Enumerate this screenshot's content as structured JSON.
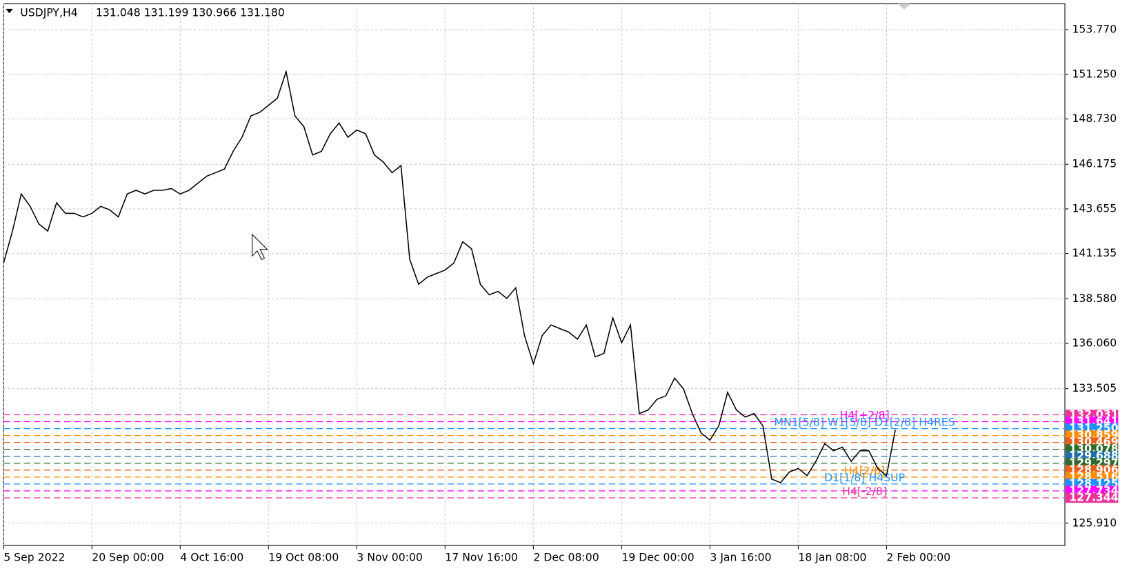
{
  "chart_data": {
    "type": "line",
    "title": "USDJPY,H4",
    "subtitle": "131.048 131.199 130.966 131.180",
    "color": "#000000",
    "values": [
      140.6,
      142.4,
      144.5,
      143.8,
      142.8,
      142.4,
      144.0,
      143.4,
      143.4,
      143.2,
      143.4,
      143.8,
      143.6,
      143.2,
      144.5,
      144.7,
      144.5,
      144.7,
      144.7,
      144.8,
      144.5,
      144.7,
      145.1,
      145.5,
      145.7,
      145.9,
      146.9,
      147.7,
      148.9,
      149.1,
      149.5,
      149.9,
      151.4,
      148.9,
      148.3,
      146.7,
      146.9,
      147.9,
      148.5,
      147.7,
      148.1,
      147.9,
      146.7,
      146.3,
      145.7,
      146.1,
      140.8,
      139.4,
      139.8,
      140.0,
      140.2,
      140.6,
      141.8,
      141.4,
      139.4,
      138.8,
      139.0,
      138.6,
      139.2,
      136.5,
      134.9,
      136.5,
      137.1,
      136.9,
      136.7,
      136.3,
      137.1,
      135.3,
      135.5,
      137.5,
      136.1,
      137.1,
      132.1,
      132.3,
      132.9,
      133.1,
      134.1,
      133.5,
      132.1,
      131.0,
      130.6,
      131.4,
      133.3,
      132.3,
      131.9,
      132.1,
      131.4,
      128.4,
      128.2,
      128.8,
      129.0,
      128.6,
      129.4,
      130.4,
      130.0,
      130.2,
      129.4,
      130.0,
      130.0,
      129.0,
      128.6,
      131.18
    ],
    "xlim": [
      0,
      120.2
    ],
    "xticks": [
      {
        "value": 0,
        "label": "5 Sep 2022"
      },
      {
        "value": 10,
        "label": "20 Sep 00:00"
      },
      {
        "value": 20,
        "label": "4 Oct 16:00"
      },
      {
        "value": 30,
        "label": "19 Oct 08:00"
      },
      {
        "value": 40,
        "label": "3 Nov 00:00"
      },
      {
        "value": 50,
        "label": "17 Nov 16:00"
      },
      {
        "value": 60,
        "label": "2 Dec 08:00"
      },
      {
        "value": 70,
        "label": "19 Dec 00:00"
      },
      {
        "value": 80,
        "label": "3 Jan 16:00"
      },
      {
        "value": 90,
        "label": "18 Jan 08:00"
      },
      {
        "value": 100,
        "label": "2 Feb 00:00"
      }
    ],
    "ylim": [
      124.65,
      155.23
    ],
    "yticks": [
      {
        "value": 153.77,
        "label": "153.770"
      },
      {
        "value": 151.25,
        "label": "151.250"
      },
      {
        "value": 148.73,
        "label": "148.730"
      },
      146.175,
      143.655,
      {
        "value": 141.135,
        "label": "141.135"
      },
      {
        "value": 138.58,
        "label": "138.580"
      },
      {
        "value": 136.06,
        "label": "136.060"
      },
      133.505,
      {
        "value": 125.91,
        "label": "125.910"
      }
    ],
    "grid": true,
    "levels": [
      {
        "value": 132.031,
        "label": "132.031",
        "color": "#e8359a"
      },
      {
        "value": 131.641,
        "label": "131.641",
        "color": "#ff00ff",
        "tag": "H4[+2/8]"
      },
      {
        "value": 131.25,
        "label": "131.250",
        "color": "#1e90ff",
        "tag": "MN1[5/8] W1[5/8] D1[2/8] H4RES"
      },
      {
        "value": 130.859,
        "label": "130.859",
        "color": "#ff8c00"
      },
      {
        "value": 130.469,
        "label": "130.469",
        "color": "#e8601c"
      },
      {
        "value": 130.078,
        "label": "130.078",
        "color": "#2e6b2e"
      },
      {
        "value": 129.688,
        "label": "129.688",
        "color": "#1e6faa"
      },
      {
        "value": 129.297,
        "label": "129.297",
        "color": "#2e6b2e"
      },
      {
        "value": 128.906,
        "label": "128.906",
        "color": "#e8601c"
      },
      {
        "value": 128.516,
        "label": "128.516",
        "color": "#ff8c00",
        "tag": "H4[2/8]"
      },
      {
        "value": 128.125,
        "label": "128.125",
        "color": "#1e90ff",
        "tag": "D1[1/8] H4SUP"
      },
      {
        "value": 127.734,
        "label": "127.734",
        "color": "#ff00ff"
      },
      {
        "value": 127.344,
        "label": "127.344",
        "color": "#e8359a",
        "tag": "H4[-2/8]"
      }
    ]
  }
}
